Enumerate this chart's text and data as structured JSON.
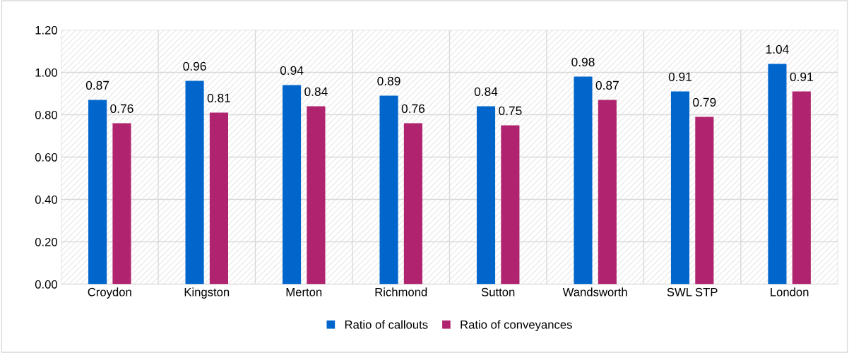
{
  "chart_data": {
    "type": "bar",
    "categories": [
      "Croydon",
      "Kingston",
      "Merton",
      "Richmond",
      "Sutton",
      "Wandsworth",
      "SWL STP",
      "London"
    ],
    "series": [
      {
        "name": "Ratio of callouts",
        "color": "#0066cc",
        "values": [
          0.87,
          0.96,
          0.94,
          0.89,
          0.84,
          0.98,
          0.91,
          1.04
        ]
      },
      {
        "name": "Ratio of conveyances",
        "color": "#b0246f",
        "values": [
          0.76,
          0.81,
          0.84,
          0.76,
          0.75,
          0.87,
          0.79,
          0.91
        ]
      }
    ],
    "ylim": [
      0,
      1.2
    ],
    "yticks": [
      {
        "value": 0,
        "label": "0.00"
      },
      {
        "value": 0.2,
        "label": "0.20"
      },
      {
        "value": 0.4,
        "label": "0.40"
      },
      {
        "value": 0.6,
        "label": "0.60"
      },
      {
        "value": 0.8,
        "label": "0.80"
      },
      {
        "value": 1.0,
        "label": "1.00"
      },
      {
        "value": 1.2,
        "label": "1.20"
      }
    ],
    "grid": true,
    "legend": "bottom",
    "data_labels": true
  }
}
